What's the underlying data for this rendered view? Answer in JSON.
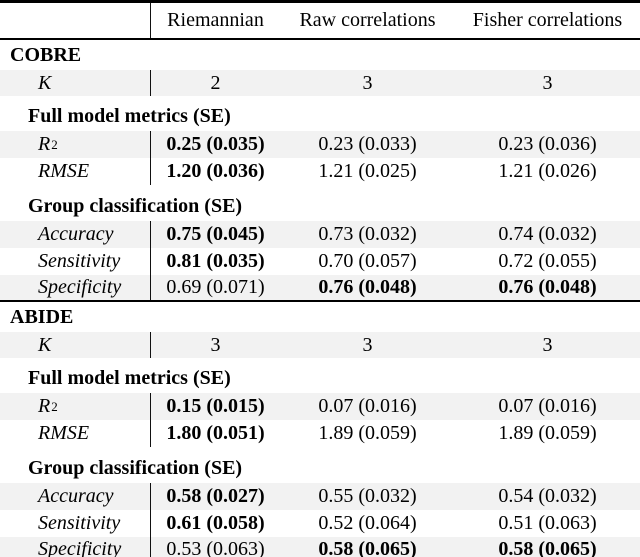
{
  "header": {
    "columns": [
      "Riemannian",
      "Raw correlations",
      "Fisher correlations"
    ]
  },
  "sections": [
    {
      "title": "COBRE",
      "k": {
        "label": "K",
        "values": [
          "2",
          "3",
          "3"
        ]
      },
      "groups": [
        {
          "heading": "Full model metrics (SE)",
          "rows": [
            {
              "label": "R",
              "sup": "2",
              "values": [
                "0.25 (0.035)",
                "0.23 (0.033)",
                "0.23 (0.036)"
              ]
            },
            {
              "label": "RMSE",
              "values": [
                "1.20 (0.036)",
                "1.21 (0.025)",
                "1.21 (0.026)"
              ]
            }
          ]
        },
        {
          "heading": "Group classification (SE)",
          "rows": [
            {
              "label": "Accuracy",
              "values": [
                "0.75 (0.045)",
                "0.73 (0.032)",
                "0.74 (0.032)"
              ]
            },
            {
              "label": "Sensitivity",
              "values": [
                "0.81 (0.035)",
                "0.70 (0.057)",
                "0.72 (0.055)"
              ]
            },
            {
              "label": "Specificity",
              "values": [
                "0.69 (0.071)",
                "0.76 (0.048)",
                "0.76 (0.048)"
              ]
            }
          ]
        }
      ]
    },
    {
      "title": "ABIDE",
      "k": {
        "label": "K",
        "values": [
          "3",
          "3",
          "3"
        ]
      },
      "groups": [
        {
          "heading": "Full model metrics (SE)",
          "rows": [
            {
              "label": "R",
              "sup": "2",
              "values": [
                "0.15 (0.015)",
                "0.07 (0.016)",
                "0.07 (0.016)"
              ]
            },
            {
              "label": "RMSE",
              "values": [
                "1.80 (0.051)",
                "1.89 (0.059)",
                "1.89 (0.059)"
              ]
            }
          ]
        },
        {
          "heading": "Group classification (SE)",
          "rows": [
            {
              "label": "Accuracy",
              "values": [
                "0.58 (0.027)",
                "0.55 (0.032)",
                "0.54 (0.032)"
              ]
            },
            {
              "label": "Sensitivity",
              "values": [
                "0.61 (0.058)",
                "0.52 (0.064)",
                "0.51 (0.063)"
              ]
            },
            {
              "label": "Specificity",
              "values": [
                "0.53 (0.063)",
                "0.58 (0.065)",
                "0.58 (0.065)"
              ]
            }
          ]
        }
      ]
    }
  ],
  "colors": {
    "stripe": "#f2f2f2",
    "rule": "#000000",
    "text": "#000000"
  }
}
